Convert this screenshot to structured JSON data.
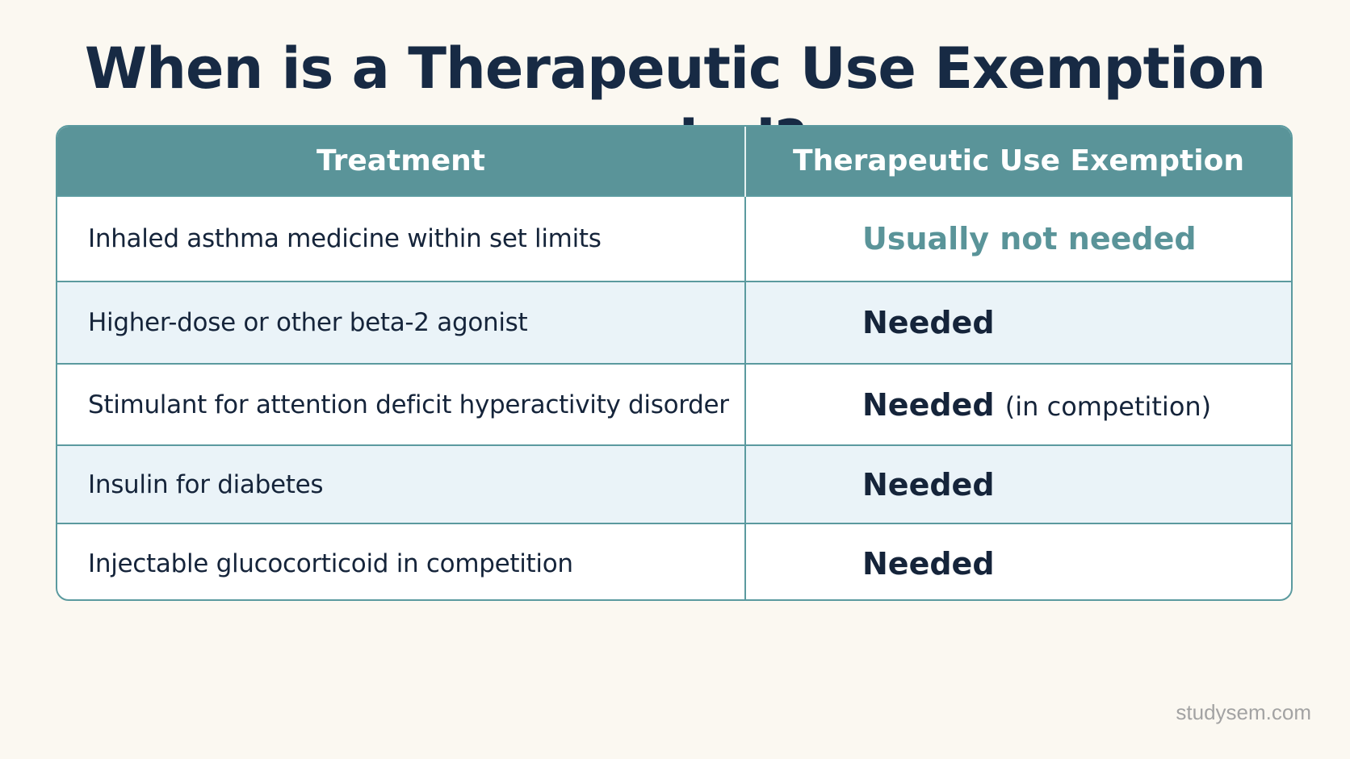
{
  "title": "When is a Therapeutic Use Exemption needed?",
  "table": {
    "headers": [
      "Treatment",
      "Therapeutic Use Exemption"
    ],
    "rows": [
      {
        "treatment": "Inhaled asthma medicine within set limits",
        "tue": "Usually not needed",
        "tue_note": ""
      },
      {
        "treatment": "Higher-dose or other beta-2 agonist",
        "tue": "Needed",
        "tue_note": ""
      },
      {
        "treatment": "Stimulant for attention deficit hyperactivity disorder",
        "tue": "Needed",
        "tue_note": "(in competition)"
      },
      {
        "treatment": "Insulin for diabetes",
        "tue": "Needed",
        "tue_note": ""
      },
      {
        "treatment": "Injectable glucocorticoid in competition",
        "tue": "Needed",
        "tue_note": ""
      }
    ]
  },
  "watermark": "studysem.com",
  "colors": {
    "header_bg": "#5a9499",
    "accent_text": "#5a9499",
    "title_text": "#172a44",
    "alt_row_bg": "#eaf3f8",
    "page_bg": "#fbf8f1"
  }
}
